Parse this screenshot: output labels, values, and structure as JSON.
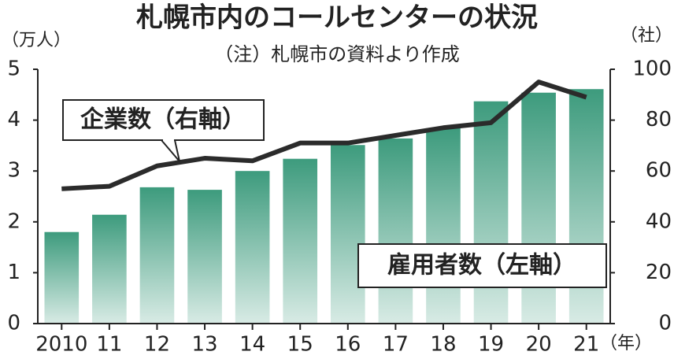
{
  "chart_data": {
    "type": "bar_line",
    "title": "札幌市内のコールセンターの状況",
    "subtitle": "（注）札幌市の資料より作成",
    "y_unit": "（万人）",
    "y2_unit": "（社）",
    "x_unit": "（年）",
    "categories": [
      "2010",
      "11",
      "12",
      "13",
      "14",
      "15",
      "16",
      "17",
      "18",
      "19",
      "20",
      "21"
    ],
    "series": [
      {
        "name": "雇用者数（左軸）",
        "type": "bar",
        "axis": "y",
        "color": "#3d9b7d",
        "values": [
          1.8,
          2.14,
          2.68,
          2.63,
          3.0,
          3.24,
          3.51,
          3.64,
          3.84,
          4.37,
          4.54,
          4.61
        ]
      },
      {
        "name": "企業数（右軸）",
        "type": "line",
        "axis": "y2",
        "color": "#2b2b2b",
        "values": [
          53,
          54,
          62,
          65,
          64,
          71,
          71,
          74,
          77,
          79,
          95,
          89
        ]
      }
    ],
    "ylim": [
      0,
      5
    ],
    "yticks": [
      0,
      1,
      2,
      3,
      4,
      5
    ],
    "y2lim": [
      0,
      100
    ],
    "y2ticks": [
      0,
      20,
      40,
      60,
      80,
      100
    ]
  }
}
